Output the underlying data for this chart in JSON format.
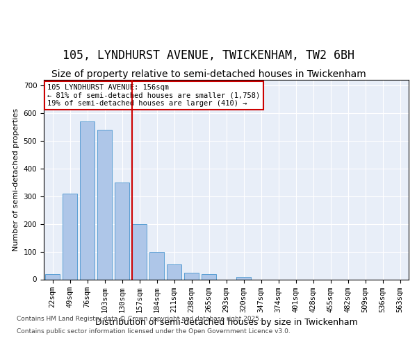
{
  "title1": "105, LYNDHURST AVENUE, TWICKENHAM, TW2 6BH",
  "title2": "Size of property relative to semi-detached houses in Twickenham",
  "xlabel": "Distribution of semi-detached houses by size in Twickenham",
  "ylabel": "Number of semi-detached properties",
  "categories": [
    "22sqm",
    "49sqm",
    "76sqm",
    "103sqm",
    "130sqm",
    "157sqm",
    "184sqm",
    "211sqm",
    "238sqm",
    "265sqm",
    "293sqm",
    "320sqm",
    "347sqm",
    "374sqm",
    "401sqm",
    "428sqm",
    "455sqm",
    "482sqm",
    "509sqm",
    "536sqm",
    "563sqm"
  ],
  "values": [
    20,
    310,
    570,
    540,
    350,
    200,
    100,
    55,
    25,
    18,
    0,
    10,
    0,
    0,
    0,
    0,
    0,
    0,
    0,
    0,
    0
  ],
  "bar_color": "#aec6e8",
  "bar_edge_color": "#5a9fd4",
  "vline_pos": 4.575,
  "vline_color": "#cc0000",
  "annotation_title": "105 LYNDHURST AVENUE: 156sqm",
  "annotation_line1": "← 81% of semi-detached houses are smaller (1,758)",
  "annotation_line2": "19% of semi-detached houses are larger (410) →",
  "annotation_box_color": "#cc0000",
  "footer1": "Contains HM Land Registry data © Crown copyright and database right 2025.",
  "footer2": "Contains public sector information licensed under the Open Government Licence v3.0.",
  "ylim": [
    0,
    720
  ],
  "yticks": [
    0,
    100,
    200,
    300,
    400,
    500,
    600,
    700
  ],
  "bg_color": "#e8eef8",
  "title1_fontsize": 12,
  "title2_fontsize": 10,
  "annotation_fontsize": 7.5,
  "axis_label_fontsize": 8,
  "tick_fontsize": 7.5,
  "footer_fontsize": 6.5
}
